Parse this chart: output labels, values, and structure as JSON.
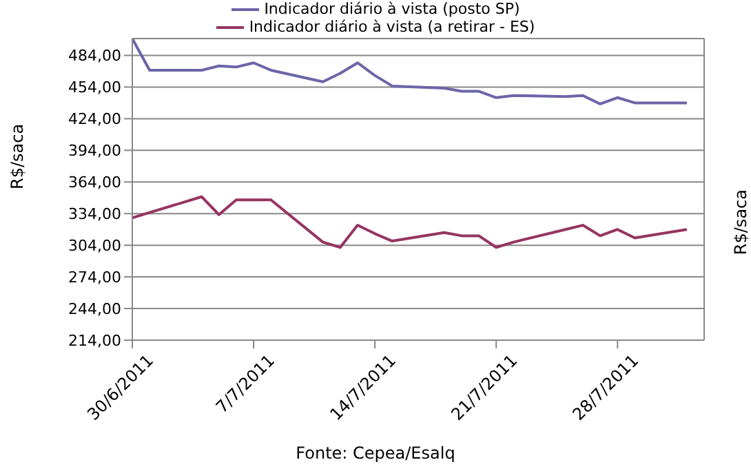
{
  "chart_data": {
    "type": "line",
    "ylabel": "R$/saca",
    "y2label": "R$/saca",
    "x": [
      "2011-06-30",
      "2011-07-01",
      "2011-07-04",
      "2011-07-05",
      "2011-07-06",
      "2011-07-07",
      "2011-07-08",
      "2011-07-11",
      "2011-07-12",
      "2011-07-13",
      "2011-07-14",
      "2011-07-15",
      "2011-07-18",
      "2011-07-19",
      "2011-07-20",
      "2011-07-21",
      "2011-07-22",
      "2011-07-25",
      "2011-07-26",
      "2011-07-27",
      "2011-07-28",
      "2011-07-29",
      "2011-08-01"
    ],
    "series": [
      {
        "name": "Indicador diário à vista (posto SP)",
        "color": "#6b66a8",
        "values": [
          500,
          470,
          470,
          474,
          473,
          477,
          470,
          459,
          467,
          477,
          465,
          455,
          453,
          450,
          450,
          444,
          446,
          445,
          446,
          438,
          444,
          439,
          439
        ]
      },
      {
        "name": "Indicador diário à vista (a retirar - ES)",
        "color": "#953562",
        "values": [
          330,
          335,
          350,
          333,
          347,
          347,
          347,
          307,
          302,
          323,
          315,
          308,
          316,
          313,
          313,
          302,
          307,
          319,
          323,
          313,
          319,
          311,
          319
        ]
      }
    ],
    "xlim": [
      "2011-06-30",
      "2011-08-02"
    ],
    "xticks": [
      {
        "value": "2011-06-30",
        "label": "30/6/2011"
      },
      {
        "value": "2011-07-07",
        "label": "7/7/2011"
      },
      {
        "value": "2011-07-14",
        "label": "14/7/2011"
      },
      {
        "value": "2011-07-21",
        "label": "21/7/2011"
      },
      {
        "value": "2011-07-28",
        "label": "28/7/2011"
      }
    ],
    "ylim": [
      214,
      500
    ],
    "yticks": [
      {
        "value": 214,
        "label": "214,00"
      },
      {
        "value": 244,
        "label": "244,00"
      },
      {
        "value": 274,
        "label": "274,00"
      },
      {
        "value": 304,
        "label": "304,00"
      },
      {
        "value": 334,
        "label": "334,00"
      },
      {
        "value": 364,
        "label": "364,00"
      },
      {
        "value": 394,
        "label": "394,00"
      },
      {
        "value": 424,
        "label": "424,00"
      },
      {
        "value": 454,
        "label": "454,00"
      },
      {
        "value": 484,
        "label": "484,00"
      }
    ],
    "grid": "y",
    "legend": "top",
    "marker": "none",
    "line_style": "solid",
    "annotations": [
      "Fonte: Cepea/Esalq"
    ]
  }
}
